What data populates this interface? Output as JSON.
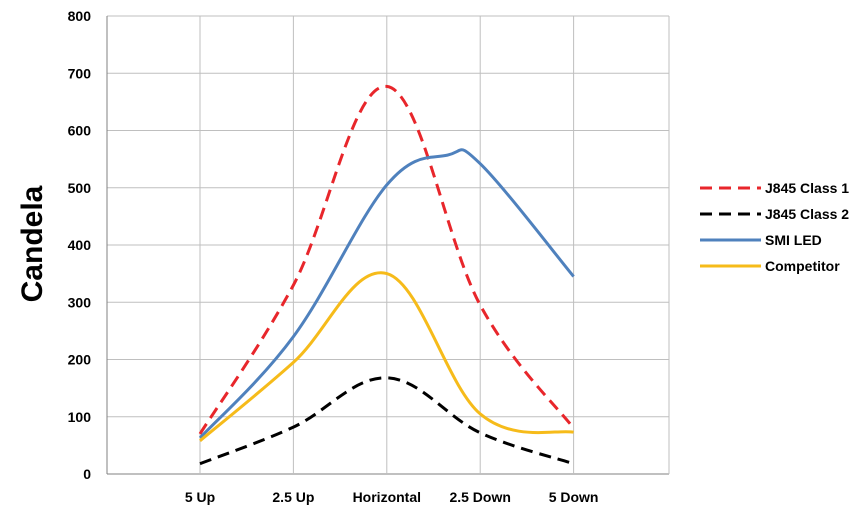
{
  "chart_data": {
    "type": "line",
    "title": "",
    "xlabel": "",
    "ylabel": "Candela",
    "categories": [
      "5 Up",
      "2.5 Up",
      "Horizontal",
      "2.5 Down",
      "5 Down"
    ],
    "ylim": [
      0,
      800
    ],
    "yticks": [
      0,
      100,
      200,
      300,
      400,
      500,
      600,
      700,
      800
    ],
    "grid": true,
    "legend_position": "right",
    "series": [
      {
        "name": "J845 Class 1",
        "color": "#e8262b",
        "dash": "dashed",
        "smooth": true,
        "values": [
          70,
          330,
          677,
          295,
          80
        ]
      },
      {
        "name": "J845 Class 2",
        "color": "#000000",
        "dash": "dashed",
        "smooth": true,
        "values": [
          18,
          82,
          168,
          72,
          18
        ]
      },
      {
        "name": "SMI LED",
        "color": "#4f81bd",
        "dash": "solid",
        "smooth": true,
        "points": [
          [
            0,
            63
          ],
          [
            1,
            240
          ],
          [
            2,
            505
          ],
          [
            2.65,
            557
          ],
          [
            3,
            542
          ],
          [
            4,
            345
          ]
        ]
      },
      {
        "name": "Competitor",
        "color": "#f6bb1a",
        "dash": "solid",
        "smooth": true,
        "points": [
          [
            0,
            58
          ],
          [
            1,
            195
          ],
          [
            2,
            350
          ],
          [
            3,
            105
          ],
          [
            4,
            73
          ]
        ]
      }
    ]
  }
}
